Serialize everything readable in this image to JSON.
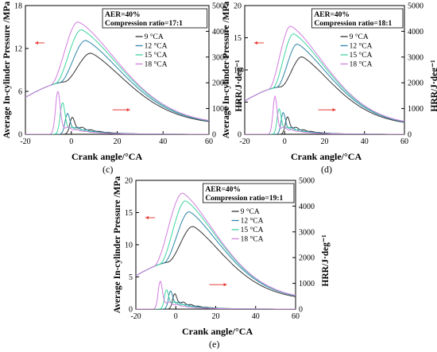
{
  "colors": {
    "pressure_axis_arrow": "#e8403a",
    "hrr_axis_arrow": "#e8403a",
    "series": [
      "#333333",
      "#2e86a8",
      "#3ed4a0",
      "#d27de0"
    ]
  },
  "chart_data": [
    {
      "panel": "(c)",
      "type": "line",
      "annotation": [
        "AER=40%",
        "Compression ratio=17:1"
      ],
      "xlabel": "Crank angle/°CA",
      "ylabel_left": "Average In-cylinder Pressure /MPa",
      "ylabel_right": "HRR/J·deg⁻¹",
      "xlim": [
        -20,
        60
      ],
      "ylim_left": [
        0,
        18
      ],
      "ylim_right": [
        0,
        5000
      ],
      "xticks": [
        -20,
        0,
        20,
        40,
        60
      ],
      "yticks_left": [
        0,
        6,
        12,
        18
      ],
      "yticks_right": [
        0,
        1000,
        2000,
        3000,
        4000,
        5000
      ],
      "legend_position": "top-right",
      "series": [
        {
          "name": "9 °CA",
          "pressure_peak": 11.3,
          "pressure_peak_angle": 9,
          "hrr_peak": 400,
          "hrr_peak_angle": 0
        },
        {
          "name": "12 °CA",
          "pressure_peak": 13.1,
          "pressure_peak_angle": 6.5,
          "hrr_peak": 560,
          "hrr_peak_angle": -2
        },
        {
          "name": "15 °CA",
          "pressure_peak": 14.6,
          "pressure_peak_angle": 4.5,
          "hrr_peak": 1000,
          "hrr_peak_angle": -4
        },
        {
          "name": "18 °CA",
          "pressure_peak": 15.7,
          "pressure_peak_angle": 3,
          "hrr_peak": 1450,
          "hrr_peak_angle": -6
        }
      ]
    },
    {
      "panel": "(d)",
      "type": "line",
      "annotation": [
        "AER=40%",
        "Compression ratio=18:1"
      ],
      "xlabel": "Crank angle/°CA",
      "ylabel_left": "Average In-cylinder Pressure /MPa",
      "ylabel_right": "HRR/J·deg⁻¹",
      "xlim": [
        -20,
        60
      ],
      "ylim_left": [
        0,
        20
      ],
      "ylim_right": [
        0,
        5000
      ],
      "xticks": [
        -20,
        0,
        20,
        40,
        60
      ],
      "yticks_left": [
        0,
        5,
        10,
        15,
        20
      ],
      "yticks_right": [
        0,
        1000,
        2000,
        3000,
        4000,
        5000
      ],
      "legend_position": "top-right",
      "series": [
        {
          "name": "9 °CA",
          "pressure_peak": 12.0,
          "pressure_peak_angle": 9,
          "hrr_peak": 420,
          "hrr_peak_angle": 1
        },
        {
          "name": "12 °CA",
          "pressure_peak": 14.0,
          "pressure_peak_angle": 6.5,
          "hrr_peak": 600,
          "hrr_peak_angle": -1
        },
        {
          "name": "15 °CA",
          "pressure_peak": 15.6,
          "pressure_peak_angle": 4.5,
          "hrr_peak": 750,
          "hrr_peak_angle": -3
        },
        {
          "name": "18 °CA",
          "pressure_peak": 16.8,
          "pressure_peak_angle": 3,
          "hrr_peak": 1250,
          "hrr_peak_angle": -5
        }
      ]
    },
    {
      "panel": "(e)",
      "type": "line",
      "annotation": [
        "AER=40%",
        "Compression ratio=19:1"
      ],
      "xlabel": "Crank angle/°CA",
      "ylabel_left": "Average In-cylinder Pressure /MPa",
      "ylabel_right": "HRR/J·deg⁻¹",
      "xlim": [
        -20,
        60
      ],
      "ylim_left": [
        0,
        20
      ],
      "ylim_right": [
        0,
        5000
      ],
      "xticks": [
        -20,
        0,
        20,
        40,
        60
      ],
      "yticks_left": [
        0,
        5,
        10,
        15,
        20
      ],
      "yticks_right": [
        0,
        1000,
        2000,
        3000,
        4000,
        5000
      ],
      "legend_position": "top-right",
      "series": [
        {
          "name": "9 °CA",
          "pressure_peak": 12.8,
          "pressure_peak_angle": 9,
          "hrr_peak": 330,
          "hrr_peak_angle": -1
        },
        {
          "name": "12 °CA",
          "pressure_peak": 15.1,
          "pressure_peak_angle": 7,
          "hrr_peak": 450,
          "hrr_peak_angle": -3
        },
        {
          "name": "15 °CA",
          "pressure_peak": 16.8,
          "pressure_peak_angle": 5,
          "hrr_peak": 500,
          "hrr_peak_angle": -5
        },
        {
          "name": "18 °CA",
          "pressure_peak": 18.0,
          "pressure_peak_angle": 3.5,
          "hrr_peak": 850,
          "hrr_peak_angle": -8
        }
      ]
    }
  ]
}
